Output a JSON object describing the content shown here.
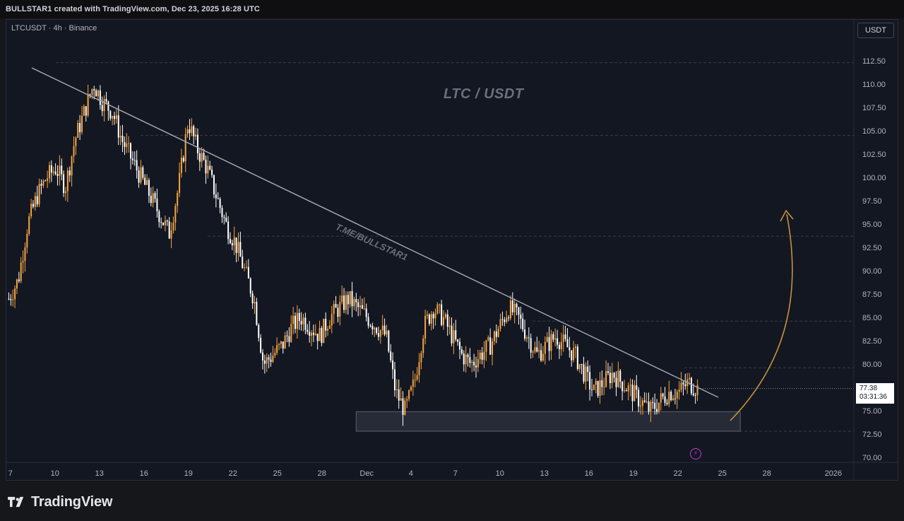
{
  "header": {
    "text": "BULLSTAR1 created with TradingView.com, Dec 23, 2025 16:28 UTC"
  },
  "symbol": {
    "label": "LTCUSDT · 4h · Binance"
  },
  "currency_button": {
    "label": "USDT"
  },
  "chart_title": "LTC / USDT",
  "watermark": "T.ME/BULLSTAR1",
  "last_price": {
    "price": "77.38",
    "countdown": "03:31:36"
  },
  "footer": {
    "brand": "TradingView"
  },
  "colors": {
    "background": "#131722",
    "up": "#f7a440",
    "down": "#ffffff",
    "trendline": "#a7abb5",
    "zone": "#2f3340",
    "arrow": "#c8923a",
    "dashed": "#3a3e48",
    "alert": "#c23bd4"
  },
  "icons": {
    "lightning": "lightning-alert-icon",
    "logo": "tradingview-logo-icon"
  },
  "chart_data": {
    "type": "candlestick",
    "ylim": [
      70,
      113.5
    ],
    "y_ticks": [
      "70.00",
      "72.50",
      "75.00",
      "77.50",
      "80.00",
      "82.50",
      "85.00",
      "87.50",
      "90.00",
      "92.50",
      "95.00",
      "97.50",
      "100.00",
      "102.50",
      "105.00",
      "107.50",
      "110.00",
      "112.50"
    ],
    "x_ticks": [
      "7",
      "10",
      "13",
      "16",
      "19",
      "22",
      "25",
      "28",
      "Dec",
      "4",
      "7",
      "10",
      "13",
      "16",
      "19",
      "22",
      "25",
      "28",
      "2026"
    ],
    "horizontal_levels": [
      112.3,
      104.5,
      93.7,
      84.6,
      79.6,
      72.8
    ],
    "trendline": {
      "from": [
        "Nov 7",
        111.5
      ],
      "to": [
        "Dec 24",
        76.1
      ]
    },
    "support_zone": {
      "from": "Nov 30",
      "to": "Dec 26",
      "low": 72.8,
      "high": 74.9
    },
    "series_close": [
      87,
      89,
      95,
      98,
      100,
      101,
      99,
      104,
      107,
      110,
      108,
      107,
      104,
      102,
      100,
      98,
      96,
      94,
      99,
      106,
      103,
      101,
      98,
      95,
      93,
      90,
      87,
      80,
      81,
      82,
      84,
      85,
      84,
      83,
      85,
      86,
      87,
      86,
      85,
      84,
      83,
      77,
      75,
      78,
      84,
      86,
      85,
      83,
      81,
      80,
      81,
      82,
      84,
      86,
      85,
      83,
      81,
      82,
      83,
      82,
      81,
      79,
      77,
      78,
      79,
      78,
      77,
      76,
      75,
      76,
      77,
      77,
      78,
      77.4
    ],
    "candle_count": 340
  }
}
